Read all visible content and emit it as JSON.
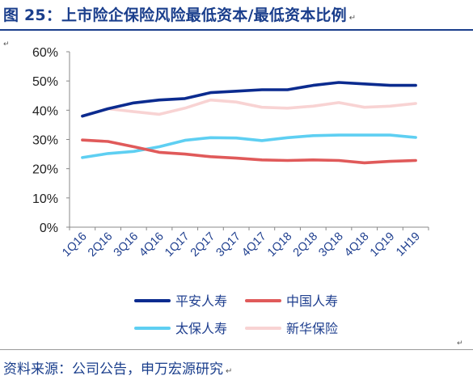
{
  "figure": {
    "title": "图 25：上市险企保险风险最低资本/最低资本比例",
    "source": "资料来源：公司公告，申万宏源研究"
  },
  "colors": {
    "title_blue": "#1a3e8c",
    "ping_an": "#0b2b8f",
    "china_life": "#e05a5a",
    "cpic": "#5ecff2",
    "nci": "#f8d3d3"
  },
  "chart_data": {
    "type": "line",
    "title": "",
    "xlabel": "",
    "ylabel": "",
    "categories": [
      "1Q16",
      "2Q16",
      "3Q16",
      "4Q16",
      "1Q17",
      "2Q17",
      "3Q17",
      "4Q17",
      "1Q18",
      "2Q18",
      "3Q18",
      "4Q18",
      "1Q19",
      "1H19"
    ],
    "ylim": [
      0,
      60
    ],
    "yticks": [
      "0%",
      "10%",
      "20%",
      "30%",
      "40%",
      "50%",
      "60%"
    ],
    "grid": false,
    "legend_position": "bottom",
    "series": [
      {
        "name": "平安人寿",
        "color": "#0b2b8f",
        "values": [
          38.0,
          40.5,
          42.5,
          43.5,
          44.0,
          46.0,
          46.5,
          47.0,
          47.0,
          48.5,
          49.5,
          49.0,
          48.5,
          48.5
        ]
      },
      {
        "name": "中国人寿",
        "color": "#e05a5a",
        "values": [
          29.8,
          29.3,
          27.5,
          25.6,
          25.0,
          24.1,
          23.6,
          23.0,
          22.8,
          23.0,
          22.8,
          22.0,
          22.5,
          22.8
        ]
      },
      {
        "name": "太保人寿",
        "color": "#5ecff2",
        "values": [
          23.8,
          25.2,
          25.9,
          27.5,
          29.7,
          30.6,
          30.5,
          29.6,
          30.6,
          31.3,
          31.5,
          31.5,
          31.5,
          30.7
        ]
      },
      {
        "name": "新华保险",
        "color": "#f8d3d3",
        "values": [
          38.0,
          40.5,
          39.5,
          38.6,
          40.7,
          43.5,
          42.8,
          41.0,
          40.7,
          41.4,
          42.6,
          41.0,
          41.4,
          42.3
        ]
      }
    ]
  }
}
